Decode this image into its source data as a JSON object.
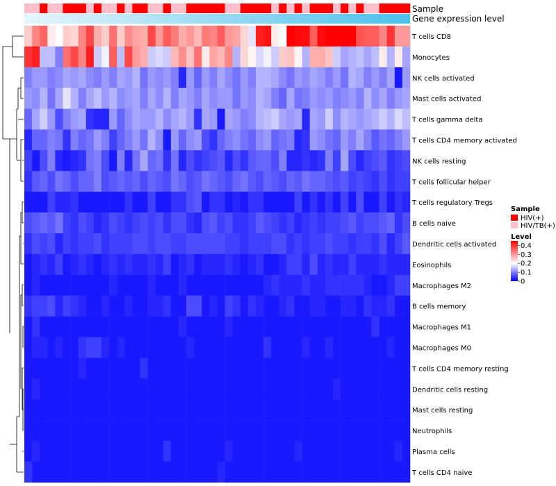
{
  "chart_data": {
    "type": "heatmap",
    "annotation_tracks": [
      "Sample",
      "Gene expression level"
    ],
    "sample_groups": [
      "HIV/TB(+)",
      "HIV/TB(+)",
      "HIV(+)",
      "HIV/TB(+)",
      "HIV/TB(+)",
      "HIV(+)",
      "HIV(+)",
      "HIV(+)",
      "HIV/TB(+)",
      "HIV(+)",
      "HIV/TB(+)",
      "HIV/TB(+)",
      "HIV(+)",
      "HIV/TB(+)",
      "HIV(+)",
      "HIV(+)",
      "HIV/TB(+)",
      "HIV/TB(+)",
      "HIV(+)",
      "HIV/TB(+)",
      "HIV/TB(+)",
      "HIV(+)",
      "HIV(+)",
      "HIV(+)",
      "HIV(+)",
      "HIV(+)",
      "HIV/TB(+)",
      "HIV/TB(+)",
      "HIV(+)",
      "HIV(+)",
      "HIV(+)",
      "HIV(+)",
      "HIV/TB(+)",
      "HIV(+)",
      "HIV/TB(+)",
      "HIV(+)",
      "HIV/TB(+)",
      "HIV(+)",
      "HIV(+)",
      "HIV(+)",
      "HIV/TB(+)",
      "HIV(+)",
      "HIV/TB(+)",
      "HIV(+)",
      "HIV/TB(+)",
      "HIV/TB(+)",
      "HIV(+)",
      "HIV(+)",
      "HIV(+)",
      "HIV(+)"
    ],
    "rows": [
      "T cells CD8",
      "Monocytes",
      "NK cells activated",
      "Mast cells activated",
      "T cells gamma delta",
      "T cells CD4 memory activated",
      "NK cells resting",
      "T cells follicular helper",
      "T cells regulatory  Tregs",
      "B cells naive",
      "Dendritic cells activated",
      "Eosinophils",
      "Macrophages M2",
      "B cells memory",
      "Macrophages M1",
      "Macrophages M0",
      "T cells CD4 memory resting",
      "Dendritic cells resting",
      "Mast cells resting",
      "Neutrophils",
      "Plasma cells",
      "T cells CD4 naive"
    ],
    "values": [
      [
        0.25,
        0.32,
        0.35,
        0.22,
        0.2,
        0.25,
        0.24,
        0.32,
        0.38,
        0.28,
        0.25,
        0.34,
        0.25,
        0.31,
        0.29,
        0.28,
        0.38,
        0.3,
        0.36,
        0.33,
        0.28,
        0.3,
        0.27,
        0.33,
        0.32,
        0.36,
        0.3,
        0.29,
        0.24,
        0.18,
        0.42,
        0.43,
        0.22,
        0.2,
        0.45,
        0.44,
        0.44,
        0.36,
        0.44,
        0.48,
        0.46,
        0.48,
        0.48,
        0.37,
        0.36,
        0.36,
        0.32,
        0.4,
        0.3,
        0.3
      ],
      [
        0.4,
        0.42,
        0.15,
        0.15,
        0.1,
        0.34,
        0.38,
        0.32,
        0.42,
        0.16,
        0.19,
        0.36,
        0.15,
        0.38,
        0.3,
        0.28,
        0.16,
        0.17,
        0.16,
        0.27,
        0.31,
        0.26,
        0.34,
        0.22,
        0.29,
        0.27,
        0.32,
        0.14,
        0.24,
        0.21,
        0.17,
        0.19,
        0.16,
        0.25,
        0.26,
        0.21,
        0.14,
        0.28,
        0.28,
        0.26,
        0.16,
        0.13,
        0.14,
        0.15,
        0.13,
        0.15,
        0.22,
        0.14,
        0.22,
        0.13
      ],
      [
        0.1,
        0.12,
        0.12,
        0.1,
        0.11,
        0.13,
        0.12,
        0.13,
        0.11,
        0.1,
        0.12,
        0.1,
        0.13,
        0.12,
        0.14,
        0.09,
        0.12,
        0.11,
        0.12,
        0.1,
        0.03,
        0.12,
        0.08,
        0.12,
        0.1,
        0.13,
        0.11,
        0.09,
        0.12,
        0.1,
        0.14,
        0.14,
        0.13,
        0.11,
        0.09,
        0.12,
        0.11,
        0.13,
        0.12,
        0.1,
        0.12,
        0.09,
        0.14,
        0.13,
        0.1,
        0.12,
        0.1,
        0.13,
        0.02,
        0.12
      ],
      [
        0.12,
        0.11,
        0.14,
        0.09,
        0.13,
        0.18,
        0.14,
        0.1,
        0.13,
        0.15,
        0.12,
        0.14,
        0.11,
        0.12,
        0.13,
        0.1,
        0.13,
        0.11,
        0.14,
        0.1,
        0.13,
        0.12,
        0.1,
        0.13,
        0.11,
        0.12,
        0.12,
        0.09,
        0.12,
        0.11,
        0.14,
        0.13,
        0.1,
        0.08,
        0.13,
        0.09,
        0.1,
        0.12,
        0.11,
        0.12,
        0.1,
        0.11,
        0.12,
        0.1,
        0.14,
        0.11,
        0.13,
        0.1,
        0.12,
        0.13
      ],
      [
        0.08,
        0.13,
        0.16,
        0.12,
        0.06,
        0.1,
        0.12,
        0.13,
        0.04,
        0.03,
        0.03,
        0.12,
        0.08,
        0.11,
        0.13,
        0.12,
        0.12,
        0.14,
        0.11,
        0.13,
        0.14,
        0.12,
        0.04,
        0.13,
        0.12,
        0.02,
        0.13,
        0.12,
        0.1,
        0.11,
        0.14,
        0.15,
        0.16,
        0.13,
        0.12,
        0.13,
        0.03,
        0.13,
        0.12,
        0.16,
        0.11,
        0.14,
        0.13,
        0.12,
        0.13,
        0.14,
        0.16,
        0.14,
        0.17,
        0.15
      ],
      [
        0.03,
        0.08,
        0.08,
        0.1,
        0.09,
        0.04,
        0.1,
        0.08,
        0.09,
        0.12,
        0.1,
        0.05,
        0.08,
        0.1,
        0.12,
        0.09,
        0.14,
        0.11,
        0.02,
        0.12,
        0.08,
        0.11,
        0.12,
        0.06,
        0.04,
        0.08,
        0.1,
        0.11,
        0.09,
        0.08,
        0.11,
        0.12,
        0.08,
        0.09,
        0.1,
        0.03,
        0.04,
        0.12,
        0.11,
        0.09,
        0.08,
        0.12,
        0.1,
        0.13,
        0.1,
        0.07,
        0.09,
        0.08,
        0.1,
        0.12
      ],
      [
        0.05,
        0.02,
        0.06,
        0.1,
        0.03,
        0.02,
        0.03,
        0.04,
        0.09,
        0.1,
        0.06,
        0.02,
        0.1,
        0.03,
        0.09,
        0.13,
        0.08,
        0.09,
        0.04,
        0.09,
        0.03,
        0.06,
        0.04,
        0.05,
        0.06,
        0.07,
        0.03,
        0.06,
        0.04,
        0.07,
        0.08,
        0.08,
        0.06,
        0.1,
        0.03,
        0.03,
        0.04,
        0.03,
        0.04,
        0.1,
        0.05,
        0.13,
        0.06,
        0.03,
        0.05,
        0.06,
        0.07,
        0.04,
        0.05,
        0.06
      ],
      [
        0.04,
        0.07,
        0.08,
        0.06,
        0.09,
        0.08,
        0.06,
        0.08,
        0.08,
        0.1,
        0.06,
        0.07,
        0.08,
        0.07,
        0.08,
        0.06,
        0.08,
        0.07,
        0.06,
        0.09,
        0.08,
        0.06,
        0.07,
        0.09,
        0.08,
        0.07,
        0.06,
        0.08,
        0.09,
        0.07,
        0.06,
        0.08,
        0.07,
        0.06,
        0.08,
        0.07,
        0.09,
        0.08,
        0.08,
        0.07,
        0.06,
        0.07,
        0.05,
        0.06,
        0.05,
        0.04,
        0.06,
        0.04,
        0.05,
        0.05
      ],
      [
        0.02,
        0.02,
        0.02,
        0.05,
        0.03,
        0.03,
        0.04,
        0.02,
        0.02,
        0.02,
        0.02,
        0.02,
        0.02,
        0.04,
        0.02,
        0.02,
        0.05,
        0.02,
        0.02,
        0.04,
        0.04,
        0.06,
        0.07,
        0.02,
        0.04,
        0.04,
        0.02,
        0.03,
        0.02,
        0.04,
        0.04,
        0.02,
        0.02,
        0.02,
        0.02,
        0.05,
        0.02,
        0.04,
        0.02,
        0.04,
        0.02,
        0.05,
        0.02,
        0.06,
        0.02,
        0.02,
        0.05,
        0.02,
        0.04,
        0.03
      ],
      [
        0.06,
        0.07,
        0.08,
        0.07,
        0.09,
        0.05,
        0.04,
        0.06,
        0.05,
        0.03,
        0.04,
        0.06,
        0.05,
        0.04,
        0.05,
        0.06,
        0.05,
        0.06,
        0.04,
        0.06,
        0.06,
        0.04,
        0.03,
        0.06,
        0.07,
        0.05,
        0.06,
        0.04,
        0.04,
        0.05,
        0.07,
        0.06,
        0.05,
        0.04,
        0.05,
        0.03,
        0.04,
        0.05,
        0.04,
        0.05,
        0.05,
        0.06,
        0.07,
        0.05,
        0.06,
        0.06,
        0.07,
        0.08,
        0.04,
        0.06
      ],
      [
        0.04,
        0.06,
        0.05,
        0.06,
        0.03,
        0.05,
        0.04,
        0.05,
        0.05,
        0.06,
        0.04,
        0.05,
        0.05,
        0.05,
        0.06,
        0.06,
        0.05,
        0.06,
        0.06,
        0.05,
        0.05,
        0.06,
        0.06,
        0.06,
        0.06,
        0.06,
        0.05,
        0.05,
        0.04,
        0.05,
        0.05,
        0.05,
        0.06,
        0.06,
        0.04,
        0.05,
        0.04,
        0.05,
        0.05,
        0.06,
        0.05,
        0.05,
        0.04,
        0.05,
        0.05,
        0.04,
        0.06,
        0.03,
        0.05,
        0.07
      ],
      [
        0.02,
        0.03,
        0.04,
        0.03,
        0.05,
        0.02,
        0.03,
        0.04,
        0.03,
        0.02,
        0.03,
        0.04,
        0.03,
        0.04,
        0.03,
        0.03,
        0.04,
        0.03,
        0.05,
        0.02,
        0.03,
        0.04,
        0.02,
        0.03,
        0.03,
        0.03,
        0.04,
        0.03,
        0.02,
        0.03,
        0.04,
        0.02,
        0.02,
        0.03,
        0.05,
        0.05,
        0.03,
        0.06,
        0.03,
        0.04,
        0.03,
        0.03,
        0.05,
        0.03,
        0.03,
        0.03,
        0.04,
        0.03,
        0.03,
        0.03
      ],
      [
        0.02,
        0.03,
        0.02,
        0.02,
        0.02,
        0.02,
        0.02,
        0.02,
        0.02,
        0.02,
        0.02,
        0.03,
        0.02,
        0.02,
        0.02,
        0.02,
        0.03,
        0.02,
        0.02,
        0.02,
        0.03,
        0.02,
        0.02,
        0.02,
        0.02,
        0.02,
        0.02,
        0.02,
        0.02,
        0.02,
        0.02,
        0.03,
        0.04,
        0.03,
        0.03,
        0.03,
        0.04,
        0.03,
        0.03,
        0.04,
        0.04,
        0.04,
        0.04,
        0.04,
        0.03,
        0.02,
        0.02,
        0.03,
        0.05,
        0.05
      ],
      [
        0.04,
        0.05,
        0.05,
        0.06,
        0.03,
        0.05,
        0.04,
        0.03,
        0.02,
        0.02,
        0.03,
        0.02,
        0.02,
        0.03,
        0.02,
        0.02,
        0.03,
        0.03,
        0.04,
        0.02,
        0.02,
        0.06,
        0.06,
        0.02,
        0.03,
        0.02,
        0.05,
        0.04,
        0.02,
        0.04,
        0.03,
        0.02,
        0.02,
        0.03,
        0.04,
        0.02,
        0.02,
        0.03,
        0.03,
        0.02,
        0.02,
        0.03,
        0.03,
        0.02,
        0.04,
        0.03,
        0.03,
        0.04,
        0.02,
        0.02
      ],
      [
        0.02,
        0.04,
        0.02,
        0.02,
        0.02,
        0.02,
        0.02,
        0.02,
        0.02,
        0.02,
        0.02,
        0.02,
        0.02,
        0.02,
        0.02,
        0.02,
        0.02,
        0.02,
        0.02,
        0.02,
        0.03,
        0.02,
        0.02,
        0.02,
        0.02,
        0.02,
        0.03,
        0.02,
        0.02,
        0.02,
        0.02,
        0.02,
        0.02,
        0.02,
        0.02,
        0.02,
        0.02,
        0.02,
        0.02,
        0.02,
        0.02,
        0.02,
        0.02,
        0.02,
        0.02,
        0.04,
        0.02,
        0.02,
        0.02,
        0.02
      ],
      [
        0.02,
        0.03,
        0.03,
        0.02,
        0.03,
        0.02,
        0.02,
        0.04,
        0.05,
        0.05,
        0.03,
        0.02,
        0.03,
        0.02,
        0.02,
        0.02,
        0.02,
        0.02,
        0.02,
        0.02,
        0.02,
        0.03,
        0.02,
        0.02,
        0.02,
        0.02,
        0.02,
        0.02,
        0.02,
        0.02,
        0.02,
        0.04,
        0.02,
        0.02,
        0.02,
        0.02,
        0.03,
        0.02,
        0.02,
        0.03,
        0.02,
        0.02,
        0.02,
        0.02,
        0.02,
        0.02,
        0.02,
        0.03,
        0.02,
        0.02
      ],
      [
        0.02,
        0.02,
        0.02,
        0.02,
        0.02,
        0.02,
        0.02,
        0.03,
        0.02,
        0.02,
        0.02,
        0.02,
        0.02,
        0.02,
        0.02,
        0.04,
        0.02,
        0.02,
        0.02,
        0.02,
        0.02,
        0.02,
        0.02,
        0.02,
        0.02,
        0.02,
        0.02,
        0.02,
        0.02,
        0.02,
        0.02,
        0.02,
        0.02,
        0.02,
        0.02,
        0.02,
        0.02,
        0.02,
        0.02,
        0.02,
        0.02,
        0.02,
        0.02,
        0.02,
        0.02,
        0.02,
        0.02,
        0.02,
        0.02,
        0.02
      ],
      [
        0.02,
        0.03,
        0.02,
        0.02,
        0.02,
        0.02,
        0.02,
        0.02,
        0.02,
        0.02,
        0.02,
        0.02,
        0.02,
        0.02,
        0.02,
        0.02,
        0.02,
        0.02,
        0.02,
        0.02,
        0.02,
        0.02,
        0.02,
        0.02,
        0.02,
        0.02,
        0.02,
        0.02,
        0.02,
        0.02,
        0.02,
        0.02,
        0.02,
        0.02,
        0.02,
        0.02,
        0.02,
        0.02,
        0.02,
        0.02,
        0.03,
        0.02,
        0.02,
        0.02,
        0.02,
        0.02,
        0.02,
        0.02,
        0.02,
        0.02
      ],
      [
        0.02,
        0.02,
        0.02,
        0.02,
        0.02,
        0.02,
        0.02,
        0.02,
        0.02,
        0.02,
        0.02,
        0.02,
        0.02,
        0.02,
        0.02,
        0.02,
        0.02,
        0.02,
        0.02,
        0.02,
        0.02,
        0.02,
        0.02,
        0.02,
        0.02,
        0.02,
        0.02,
        0.02,
        0.02,
        0.02,
        0.02,
        0.02,
        0.02,
        0.02,
        0.02,
        0.02,
        0.02,
        0.02,
        0.02,
        0.02,
        0.02,
        0.02,
        0.02,
        0.02,
        0.02,
        0.02,
        0.02,
        0.02,
        0.02,
        0.02
      ],
      [
        0.02,
        0.02,
        0.02,
        0.02,
        0.02,
        0.02,
        0.02,
        0.02,
        0.02,
        0.02,
        0.02,
        0.02,
        0.02,
        0.02,
        0.02,
        0.02,
        0.02,
        0.02,
        0.02,
        0.02,
        0.02,
        0.02,
        0.02,
        0.02,
        0.02,
        0.02,
        0.02,
        0.02,
        0.02,
        0.02,
        0.02,
        0.02,
        0.02,
        0.02,
        0.02,
        0.02,
        0.02,
        0.02,
        0.02,
        0.02,
        0.02,
        0.02,
        0.02,
        0.02,
        0.02,
        0.02,
        0.02,
        0.02,
        0.02,
        0.02
      ],
      [
        0.02,
        0.03,
        0.02,
        0.02,
        0.02,
        0.02,
        0.02,
        0.02,
        0.02,
        0.02,
        0.02,
        0.02,
        0.02,
        0.02,
        0.02,
        0.02,
        0.02,
        0.02,
        0.04,
        0.02,
        0.02,
        0.02,
        0.02,
        0.02,
        0.02,
        0.02,
        0.03,
        0.02,
        0.02,
        0.02,
        0.02,
        0.02,
        0.02,
        0.02,
        0.02,
        0.03,
        0.02,
        0.02,
        0.02,
        0.02,
        0.02,
        0.02,
        0.02,
        0.02,
        0.02,
        0.02,
        0.02,
        0.02,
        0.03,
        0.02
      ],
      [
        0.04,
        0.02,
        0.02,
        0.02,
        0.02,
        0.02,
        0.02,
        0.02,
        0.02,
        0.02,
        0.02,
        0.02,
        0.02,
        0.02,
        0.02,
        0.02,
        0.02,
        0.02,
        0.02,
        0.02,
        0.02,
        0.02,
        0.02,
        0.02,
        0.02,
        0.03,
        0.02,
        0.02,
        0.02,
        0.02,
        0.02,
        0.02,
        0.02,
        0.02,
        0.02,
        0.02,
        0.02,
        0.02,
        0.02,
        0.02,
        0.02,
        0.02,
        0.02,
        0.02,
        0.02,
        0.02,
        0.02,
        0.02,
        0.02,
        0.02
      ]
    ],
    "legend": {
      "sample_title": "Sample",
      "sample_entries": [
        {
          "label": "HIV(+)",
          "color": "#ff0000"
        },
        {
          "label": "HIV/TB(+)",
          "color": "#ffc0cb"
        }
      ],
      "level_title": "Level",
      "level_ticks": [
        "0.4",
        "0.3",
        "0.2",
        "0.1",
        "0"
      ],
      "level_tick_values": [
        0.4,
        0.3,
        0.2,
        0.1,
        0
      ],
      "level_range": [
        0,
        0.45
      ]
    },
    "colors": {
      "low": "#0000ff",
      "mid": "#ffffff",
      "high": "#ff0000",
      "expr_gradient_start": "#e6f6fc",
      "expr_gradient_end": "#4cc0ec"
    },
    "color_midpoint": 0.2
  }
}
